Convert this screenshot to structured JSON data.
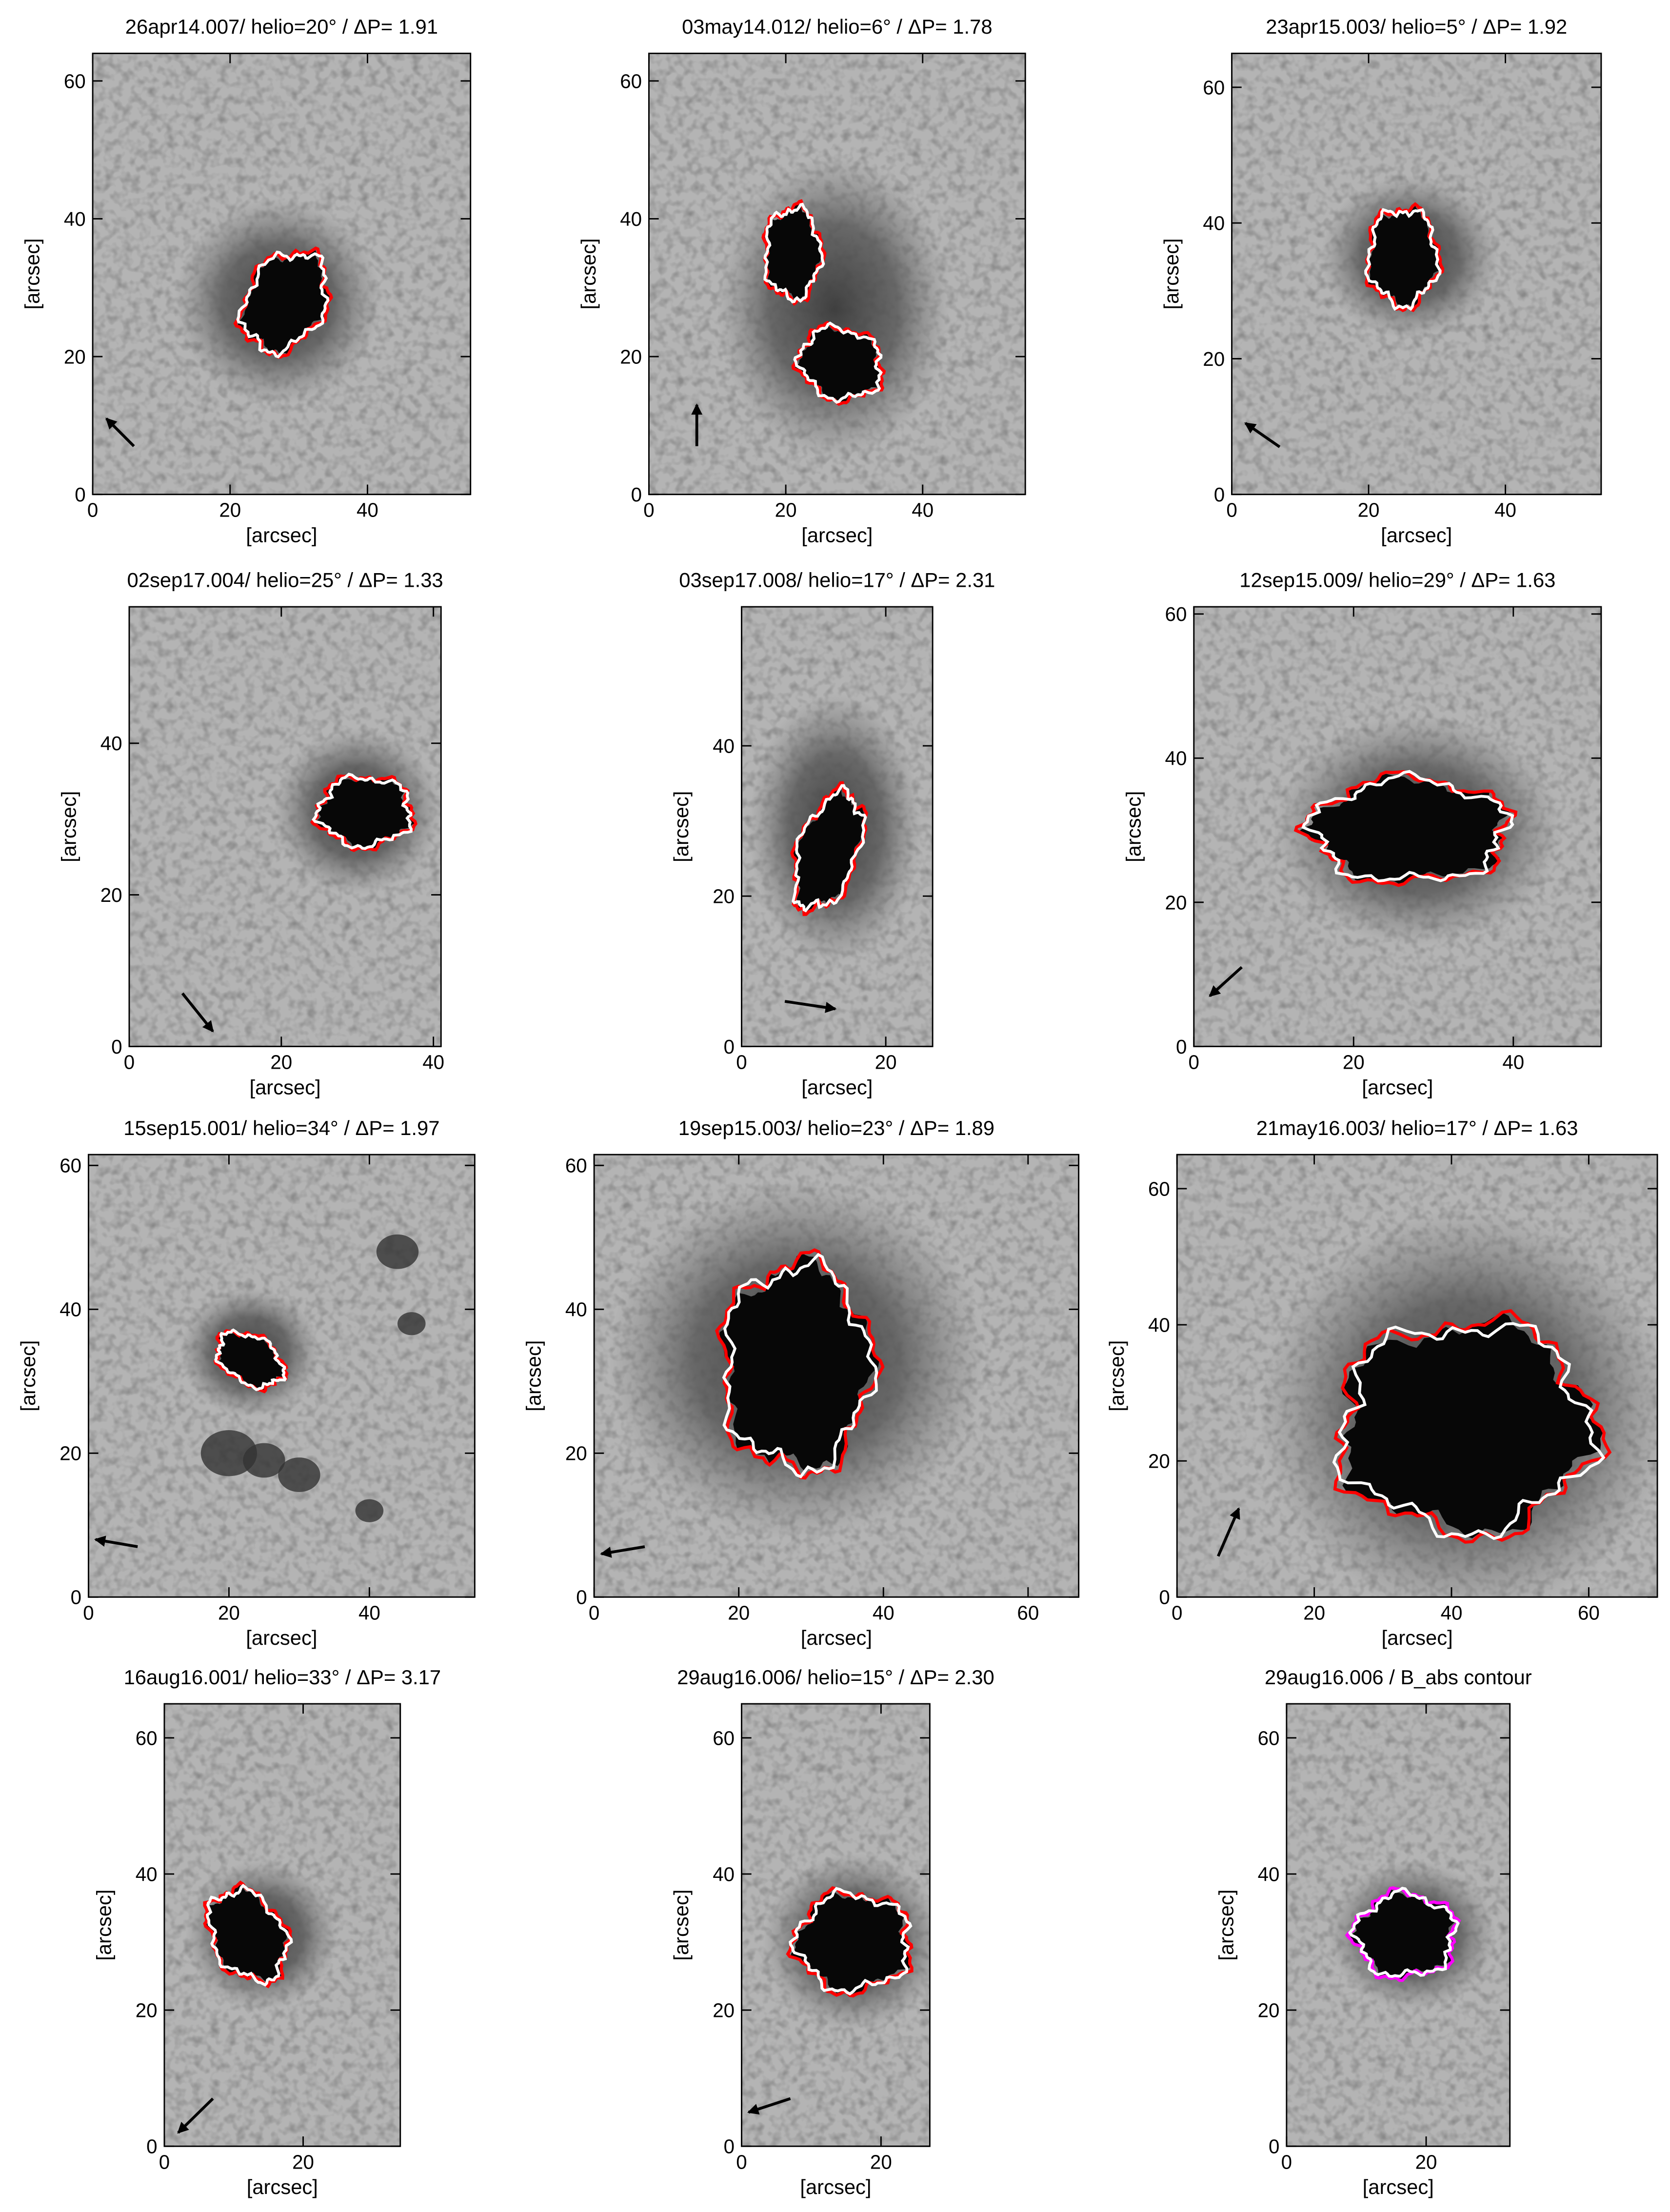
{
  "chart_data": [
    {
      "type": "image",
      "title": "26apr14.007/ helio=20° / ΔP= 1.91",
      "xlabel": "[arcsec]",
      "ylabel": "[arcsec]",
      "xlim": [
        0,
        55
      ],
      "ylim": [
        0,
        64
      ],
      "xticks": [
        0,
        20,
        40
      ],
      "yticks": [
        0,
        20,
        40,
        60
      ]
    },
    {
      "type": "image",
      "title": "03may14.012/ helio=6° / ΔP= 1.78",
      "xlabel": "[arcsec]",
      "ylabel": "[arcsec]",
      "xlim": [
        0,
        55
      ],
      "ylim": [
        0,
        64
      ],
      "xticks": [
        0,
        20,
        40
      ],
      "yticks": [
        0,
        20,
        40,
        60
      ]
    },
    {
      "type": "image",
      "title": "23apr15.003/ helio=5° / ΔP= 1.92",
      "xlabel": "[arcsec]",
      "ylabel": "[arcsec]",
      "xlim": [
        0,
        54
      ],
      "ylim": [
        0,
        65
      ],
      "xticks": [
        0,
        20,
        40
      ],
      "yticks": [
        0,
        20,
        40,
        60
      ]
    },
    {
      "type": "image",
      "title": "02sep17.004/ helio=25° / ΔP= 1.33",
      "xlabel": "[arcsec]",
      "ylabel": "[arcsec]",
      "xlim": [
        0,
        41
      ],
      "ylim": [
        0,
        58
      ],
      "xticks": [
        0,
        20,
        40
      ],
      "yticks": [
        0,
        20,
        40
      ]
    },
    {
      "type": "image",
      "title": "03sep17.008/ helio=17° / ΔP= 2.31",
      "xlabel": "[arcsec]",
      "ylabel": "[arcsec]",
      "xlim": [
        0,
        26.5
      ],
      "ylim": [
        0,
        58.5
      ],
      "xticks": [
        0,
        20
      ],
      "yticks": [
        0,
        20,
        40
      ]
    },
    {
      "type": "image",
      "title": "12sep15.009/ helio=29° / ΔP= 1.63",
      "xlabel": "[arcsec]",
      "ylabel": "[arcsec]",
      "xlim": [
        0,
        51
      ],
      "ylim": [
        0,
        61
      ],
      "xticks": [
        0,
        20,
        40
      ],
      "yticks": [
        0,
        20,
        40,
        60
      ]
    },
    {
      "type": "image",
      "title": "15sep15.001/ helio=34° / ΔP= 1.97",
      "xlabel": "[arcsec]",
      "ylabel": "[arcsec]",
      "xlim": [
        0,
        55
      ],
      "ylim": [
        0,
        61.5
      ],
      "xticks": [
        0,
        20,
        40
      ],
      "yticks": [
        0,
        20,
        40,
        60
      ]
    },
    {
      "type": "image",
      "title": "19sep15.003/ helio=23° / ΔP= 1.89",
      "xlabel": "[arcsec]",
      "ylabel": "[arcsec]",
      "xlim": [
        0,
        67
      ],
      "ylim": [
        0,
        61.5
      ],
      "xticks": [
        0,
        20,
        40,
        60
      ],
      "yticks": [
        0,
        20,
        40,
        60
      ]
    },
    {
      "type": "image",
      "title": "21may16.003/ helio=17° / ΔP= 1.63",
      "xlabel": "[arcsec]",
      "ylabel": "[arcsec]",
      "xlim": [
        0,
        70
      ],
      "ylim": [
        0,
        65
      ],
      "xticks": [
        0,
        20,
        40,
        60
      ],
      "yticks": [
        0,
        20,
        40,
        60
      ]
    },
    {
      "type": "image",
      "title": "16aug16.001/ helio=33° / ΔP= 3.17",
      "xlabel": "[arcsec]",
      "ylabel": "[arcsec]",
      "xlim": [
        0,
        34
      ],
      "ylim": [
        0,
        65
      ],
      "xticks": [
        0,
        20
      ],
      "yticks": [
        0,
        20,
        40,
        60
      ]
    },
    {
      "type": "image",
      "title": "29aug16.006/ helio=15° / ΔP= 2.30",
      "xlabel": "[arcsec]",
      "ylabel": "[arcsec]",
      "xlim": [
        0,
        27
      ],
      "ylim": [
        0,
        65
      ],
      "xticks": [
        0,
        20
      ],
      "yticks": [
        0,
        20,
        40,
        60
      ]
    },
    {
      "type": "image",
      "title": "29aug16.006 / B_abs contour",
      "xlabel": "[arcsec]",
      "ylabel": "[arcsec]",
      "xlim": [
        0,
        32
      ],
      "ylim": [
        0,
        65
      ],
      "xticks": [
        0,
        20
      ],
      "yticks": [
        0,
        20,
        40,
        60
      ]
    }
  ]
}
